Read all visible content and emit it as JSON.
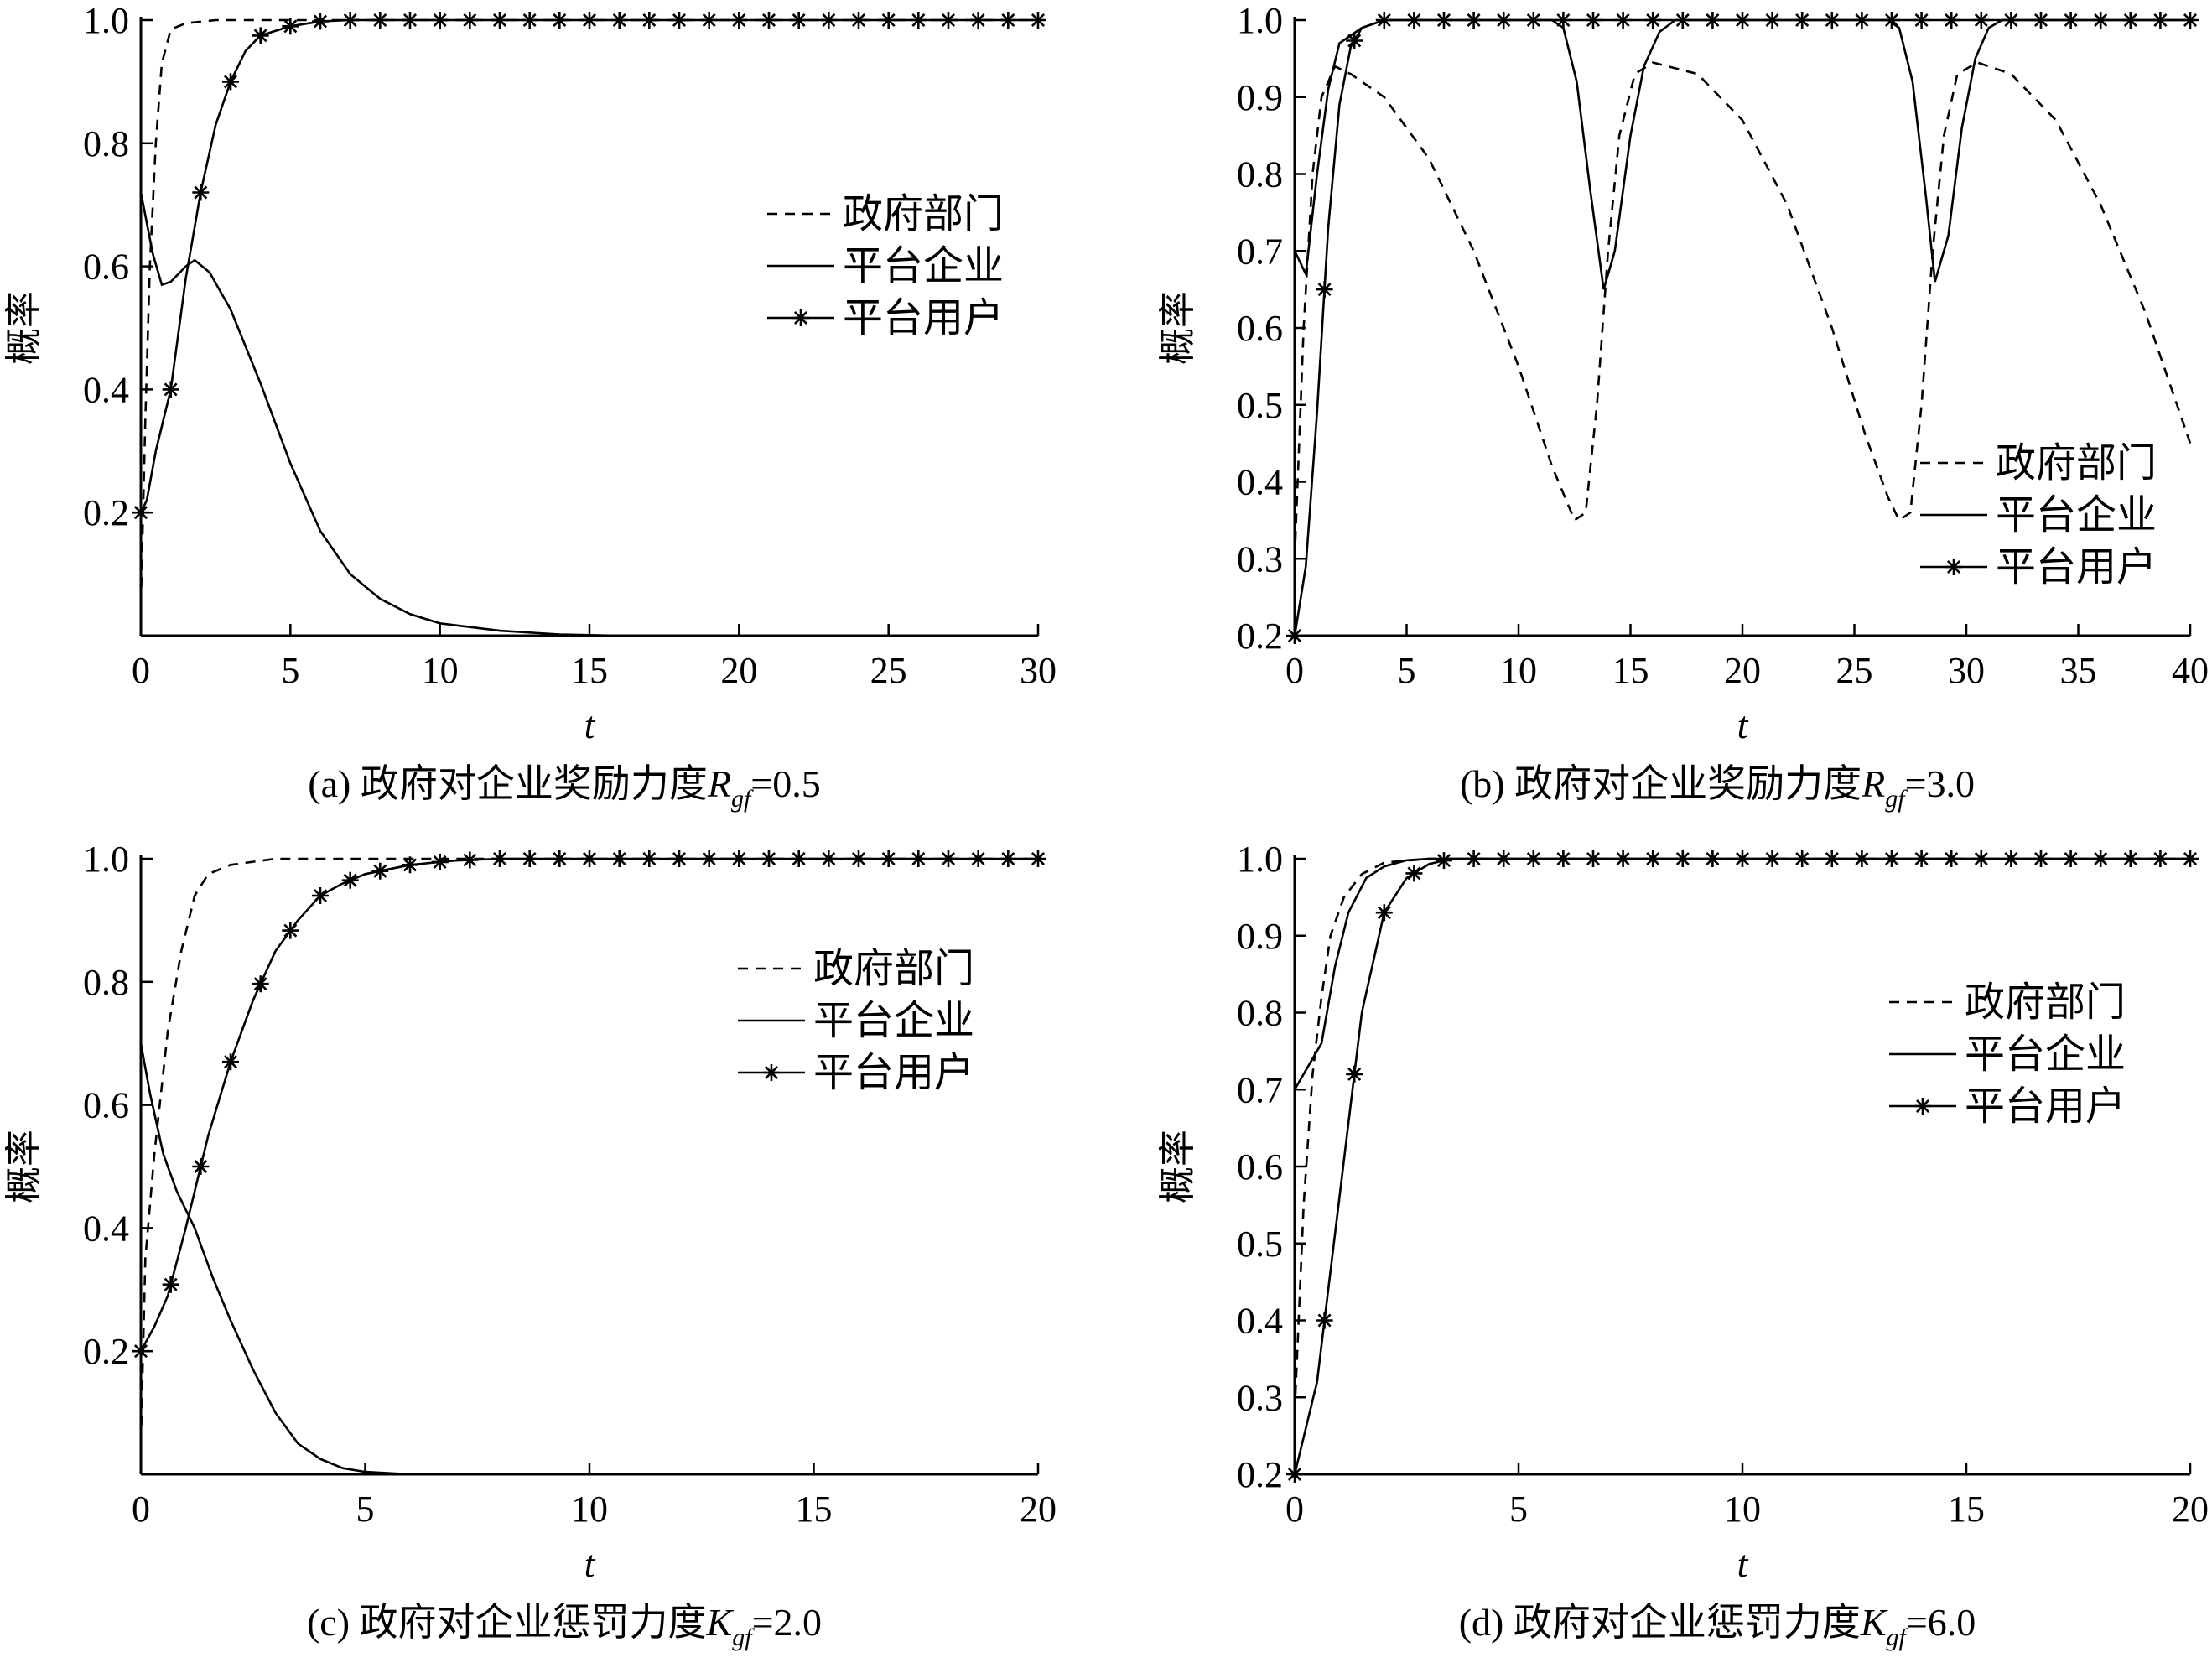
{
  "chart_data": [
    {
      "panel": "a",
      "type": "line",
      "caption": "(a) 政府对企业奖励力度",
      "caption_symbol": "R",
      "caption_subscript": "gf",
      "caption_value": "=0.5",
      "xlabel": "t",
      "ylabel": "概率",
      "xlim": [
        0,
        30
      ],
      "ylim": [
        0,
        1.0
      ],
      "xticks": [
        0,
        5,
        10,
        15,
        20,
        25,
        30
      ],
      "yticks": [
        0.2,
        0.4,
        0.6,
        0.8,
        1.0
      ],
      "ytick_labels": [
        "0.2",
        "0.4",
        "0.6",
        "0.8",
        "1.0"
      ],
      "legend_position": "middle-right",
      "series": [
        {
          "name": "政府部门",
          "style": "dashed",
          "points": [
            [
              0,
              0.05
            ],
            [
              0.15,
              0.35
            ],
            [
              0.3,
              0.6
            ],
            [
              0.5,
              0.8
            ],
            [
              0.7,
              0.93
            ],
            [
              1.0,
              0.985
            ],
            [
              1.5,
              0.995
            ],
            [
              2.5,
              1.0
            ],
            [
              30,
              1.0
            ]
          ]
        },
        {
          "name": "平台企业",
          "style": "solid",
          "points": [
            [
              0,
              0.72
            ],
            [
              0.4,
              0.62
            ],
            [
              0.7,
              0.57
            ],
            [
              1.0,
              0.575
            ],
            [
              1.5,
              0.6
            ],
            [
              1.8,
              0.61
            ],
            [
              2.3,
              0.59
            ],
            [
              3,
              0.53
            ],
            [
              4,
              0.41
            ],
            [
              5,
              0.28
            ],
            [
              6,
              0.17
            ],
            [
              7,
              0.1
            ],
            [
              8,
              0.06
            ],
            [
              9,
              0.035
            ],
            [
              10,
              0.02
            ],
            [
              12,
              0.008
            ],
            [
              14,
              0.002
            ],
            [
              16,
              0.0
            ],
            [
              30,
              0.0
            ]
          ]
        },
        {
          "name": "平台用户",
          "style": "star",
          "points": [
            [
              0,
              0.2
            ],
            [
              0.2,
              0.22
            ],
            [
              0.5,
              0.3
            ],
            [
              1,
              0.4
            ],
            [
              1.5,
              0.58
            ],
            [
              2,
              0.72
            ],
            [
              2.5,
              0.83
            ],
            [
              3,
              0.9
            ],
            [
              3.5,
              0.95
            ],
            [
              4,
              0.975
            ],
            [
              5,
              0.99
            ],
            [
              6,
              0.998
            ],
            [
              7,
              1.0
            ],
            [
              30,
              1.0
            ]
          ]
        }
      ]
    },
    {
      "panel": "b",
      "type": "line",
      "caption": "(b) 政府对企业奖励力度",
      "caption_symbol": "R",
      "caption_subscript": "gf",
      "caption_value": "=3.0",
      "xlabel": "t",
      "ylabel": "概率",
      "xlim": [
        0,
        40
      ],
      "ylim": [
        0.2,
        1.0
      ],
      "xticks": [
        0,
        5,
        10,
        15,
        20,
        25,
        30,
        35,
        40
      ],
      "yticks": [
        0.2,
        0.3,
        0.4,
        0.5,
        0.6,
        0.7,
        0.8,
        0.9,
        1.0
      ],
      "ytick_labels": [
        "0.2",
        "0.3",
        "0.4",
        "0.5",
        "0.6",
        "0.7",
        "0.8",
        "0.9",
        "1.0"
      ],
      "legend_position": "bottom-right",
      "series": [
        {
          "name": "政府部门",
          "style": "dashed",
          "points": [
            [
              0,
              0.3
            ],
            [
              0.4,
              0.6
            ],
            [
              0.8,
              0.8
            ],
            [
              1.2,
              0.9
            ],
            [
              1.8,
              0.94
            ],
            [
              2.5,
              0.93
            ],
            [
              4,
              0.9
            ],
            [
              6,
              0.82
            ],
            [
              8,
              0.7
            ],
            [
              10,
              0.55
            ],
            [
              11.5,
              0.42
            ],
            [
              12.5,
              0.35
            ],
            [
              13,
              0.36
            ],
            [
              13.5,
              0.5
            ],
            [
              14,
              0.7
            ],
            [
              14.5,
              0.85
            ],
            [
              15.2,
              0.93
            ],
            [
              16,
              0.945
            ],
            [
              18,
              0.93
            ],
            [
              20,
              0.87
            ],
            [
              22,
              0.76
            ],
            [
              24,
              0.6
            ],
            [
              25.5,
              0.46
            ],
            [
              26.5,
              0.38
            ],
            [
              27,
              0.35
            ],
            [
              27.5,
              0.36
            ],
            [
              28,
              0.5
            ],
            [
              28.5,
              0.7
            ],
            [
              29,
              0.85
            ],
            [
              29.6,
              0.93
            ],
            [
              30.5,
              0.945
            ],
            [
              32,
              0.93
            ],
            [
              34,
              0.87
            ],
            [
              36,
              0.76
            ],
            [
              38,
              0.62
            ],
            [
              40,
              0.45
            ]
          ]
        },
        {
          "name": "平台企业",
          "style": "solid",
          "points": [
            [
              0,
              0.7
            ],
            [
              0.5,
              0.67
            ],
            [
              1,
              0.8
            ],
            [
              1.5,
              0.91
            ],
            [
              2,
              0.97
            ],
            [
              3,
              0.99
            ],
            [
              4,
              1.0
            ],
            [
              11.5,
              1.0
            ],
            [
              12,
              0.99
            ],
            [
              12.6,
              0.92
            ],
            [
              13.2,
              0.78
            ],
            [
              13.8,
              0.65
            ],
            [
              14.3,
              0.7
            ],
            [
              15,
              0.85
            ],
            [
              15.6,
              0.94
            ],
            [
              16.3,
              0.985
            ],
            [
              17,
              1.0
            ],
            [
              26.5,
              1.0
            ],
            [
              27,
              0.99
            ],
            [
              27.6,
              0.92
            ],
            [
              28.2,
              0.77
            ],
            [
              28.6,
              0.66
            ],
            [
              29.2,
              0.72
            ],
            [
              29.8,
              0.86
            ],
            [
              30.4,
              0.95
            ],
            [
              31,
              0.99
            ],
            [
              31.6,
              1.0
            ],
            [
              40,
              1.0
            ]
          ]
        },
        {
          "name": "平台用户",
          "style": "star",
          "points": [
            [
              0,
              0.2
            ],
            [
              0.5,
              0.29
            ],
            [
              1,
              0.49
            ],
            [
              1.5,
              0.73
            ],
            [
              2,
              0.89
            ],
            [
              2.5,
              0.965
            ],
            [
              3,
              0.99
            ],
            [
              4,
              1.0
            ],
            [
              40,
              1.0
            ]
          ]
        }
      ]
    },
    {
      "panel": "c",
      "type": "line",
      "caption": "(c) 政府对企业惩罚力度",
      "caption_symbol": "K",
      "caption_subscript": "gf",
      "caption_value": "=2.0",
      "xlabel": "t",
      "ylabel": "概率",
      "xlim": [
        0,
        20
      ],
      "ylim": [
        0,
        1.0
      ],
      "xticks": [
        0,
        5,
        10,
        15,
        20
      ],
      "yticks": [
        0.2,
        0.4,
        0.6,
        0.8,
        1.0
      ],
      "ytick_labels": [
        "0.2",
        "0.4",
        "0.6",
        "0.8",
        "1.0"
      ],
      "legend_position": "top-right",
      "series": [
        {
          "name": "政府部门",
          "style": "dashed",
          "points": [
            [
              0,
              0.05
            ],
            [
              0.1,
              0.35
            ],
            [
              0.3,
              0.52
            ],
            [
              0.6,
              0.72
            ],
            [
              0.9,
              0.85
            ],
            [
              1.2,
              0.94
            ],
            [
              1.5,
              0.975
            ],
            [
              2,
              0.99
            ],
            [
              3,
              1.0
            ],
            [
              20,
              1.0
            ]
          ]
        },
        {
          "name": "平台企业",
          "style": "solid",
          "points": [
            [
              0,
              0.7
            ],
            [
              0.2,
              0.62
            ],
            [
              0.5,
              0.52
            ],
            [
              0.8,
              0.46
            ],
            [
              1.2,
              0.4
            ],
            [
              1.6,
              0.32
            ],
            [
              2,
              0.25
            ],
            [
              2.5,
              0.17
            ],
            [
              3,
              0.1
            ],
            [
              3.5,
              0.05
            ],
            [
              4,
              0.025
            ],
            [
              4.5,
              0.01
            ],
            [
              5,
              0.004
            ],
            [
              6,
              0.0
            ],
            [
              20,
              0.0
            ]
          ]
        },
        {
          "name": "平台用户",
          "style": "star",
          "points": [
            [
              0,
              0.2
            ],
            [
              0.3,
              0.24
            ],
            [
              0.6,
              0.29
            ],
            [
              1,
              0.4
            ],
            [
              1.5,
              0.55
            ],
            [
              2,
              0.67
            ],
            [
              2.5,
              0.77
            ],
            [
              3,
              0.85
            ],
            [
              3.5,
              0.9
            ],
            [
              4,
              0.94
            ],
            [
              4.5,
              0.96
            ],
            [
              5,
              0.975
            ],
            [
              6,
              0.99
            ],
            [
              7,
              0.997
            ],
            [
              8,
              1.0
            ],
            [
              20,
              1.0
            ]
          ]
        }
      ]
    },
    {
      "panel": "d",
      "type": "line",
      "caption": "(d) 政府对企业惩罚力度",
      "caption_symbol": "K",
      "caption_subscript": "gf",
      "caption_value": "=6.0",
      "xlabel": "t",
      "ylabel": "概率",
      "xlim": [
        0,
        20
      ],
      "ylim": [
        0.2,
        1.0
      ],
      "xticks": [
        0,
        5,
        10,
        15,
        20
      ],
      "yticks": [
        0.2,
        0.3,
        0.4,
        0.5,
        0.6,
        0.7,
        0.8,
        0.9,
        1.0
      ],
      "ytick_labels": [
        "0.2",
        "0.3",
        "0.4",
        "0.5",
        "0.6",
        "0.7",
        "0.8",
        "0.9",
        "1.0"
      ],
      "legend_position": "top-right",
      "series": [
        {
          "name": "政府部门",
          "style": "dashed",
          "points": [
            [
              0,
              0.28
            ],
            [
              0.2,
              0.55
            ],
            [
              0.4,
              0.72
            ],
            [
              0.6,
              0.82
            ],
            [
              0.8,
              0.9
            ],
            [
              1.1,
              0.95
            ],
            [
              1.5,
              0.98
            ],
            [
              2,
              0.995
            ],
            [
              3,
              1.0
            ],
            [
              20,
              1.0
            ]
          ]
        },
        {
          "name": "平台企业",
          "style": "solid",
          "points": [
            [
              0,
              0.7
            ],
            [
              0.3,
              0.73
            ],
            [
              0.6,
              0.76
            ],
            [
              0.9,
              0.86
            ],
            [
              1.2,
              0.93
            ],
            [
              1.6,
              0.975
            ],
            [
              2,
              0.99
            ],
            [
              2.5,
              0.998
            ],
            [
              3,
              1.0
            ],
            [
              20,
              1.0
            ]
          ]
        },
        {
          "name": "平台用户",
          "style": "star",
          "points": [
            [
              0,
              0.2
            ],
            [
              0.5,
              0.32
            ],
            [
              1,
              0.56
            ],
            [
              1.5,
              0.8
            ],
            [
              2,
              0.93
            ],
            [
              2.5,
              0.975
            ],
            [
              3,
              0.993
            ],
            [
              3.5,
              1.0
            ],
            [
              20,
              1.0
            ]
          ]
        }
      ]
    }
  ]
}
